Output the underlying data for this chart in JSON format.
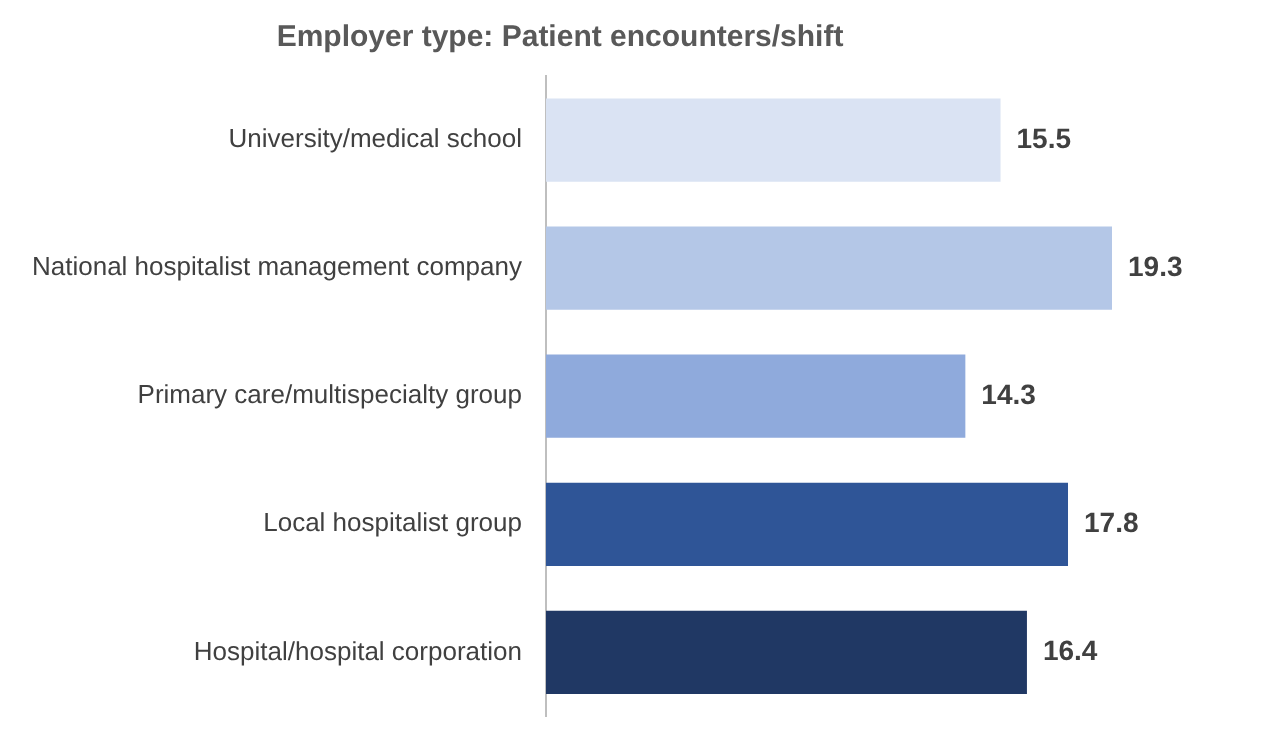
{
  "chart_data": {
    "type": "bar",
    "title": "Employer type: Patient encounters/shift",
    "orientation": "horizontal",
    "data_labels": true,
    "categories": [
      "University/medical school",
      "National hospitalist management company",
      "Primary care/multispecialty group",
      "Local hospitalist group",
      "Hospital/hospital corporation"
    ],
    "values": [
      15.5,
      19.3,
      14.3,
      17.8,
      16.4
    ],
    "colors": [
      "#dae3f3",
      "#b4c7e7",
      "#8faadc",
      "#2f5597",
      "#203864"
    ]
  }
}
